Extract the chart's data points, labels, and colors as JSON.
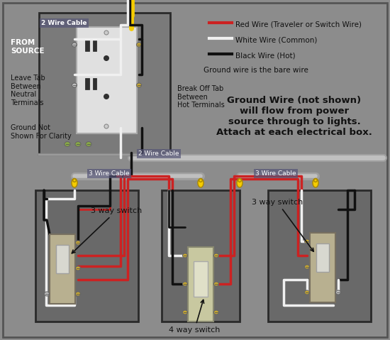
{
  "bg_color": "#8c8c8c",
  "wire_colors": {
    "red": "#cc2222",
    "white": "#f0f0f0",
    "black": "#111111",
    "yellow": "#f5cc00",
    "gray_wire": "#999999"
  },
  "legend": {
    "red_label": "Red Wire (Traveler or Switch Wire)",
    "white_label": "White Wire (Common)",
    "black_label": "Black Wire (Hot)",
    "ground_note": "Ground wire is the bare wire"
  },
  "ground_text": "Ground Wire (not shown)\nwill flow from power\nsource through to lights.\nAttach at each electrical box.",
  "labels": {
    "two_wire_top": "2 Wire Cable",
    "from_source": "FROM\nSOURCE",
    "leave_tab": "Leave Tab\nBetween\nNeutral\nTerminals",
    "break_off": "Break Off Tab\nBetween\nHot Terminals",
    "ground_not": "Ground Not\nShown For Clarity",
    "two_wire_bot": "2 Wire Cable",
    "three_wire_left": "3 Wire Cable",
    "three_wire_right": "3 Wire Cable",
    "sw3_left": "3 way switch",
    "sw4": "4 way switch",
    "sw3_right": "3 way switch"
  }
}
